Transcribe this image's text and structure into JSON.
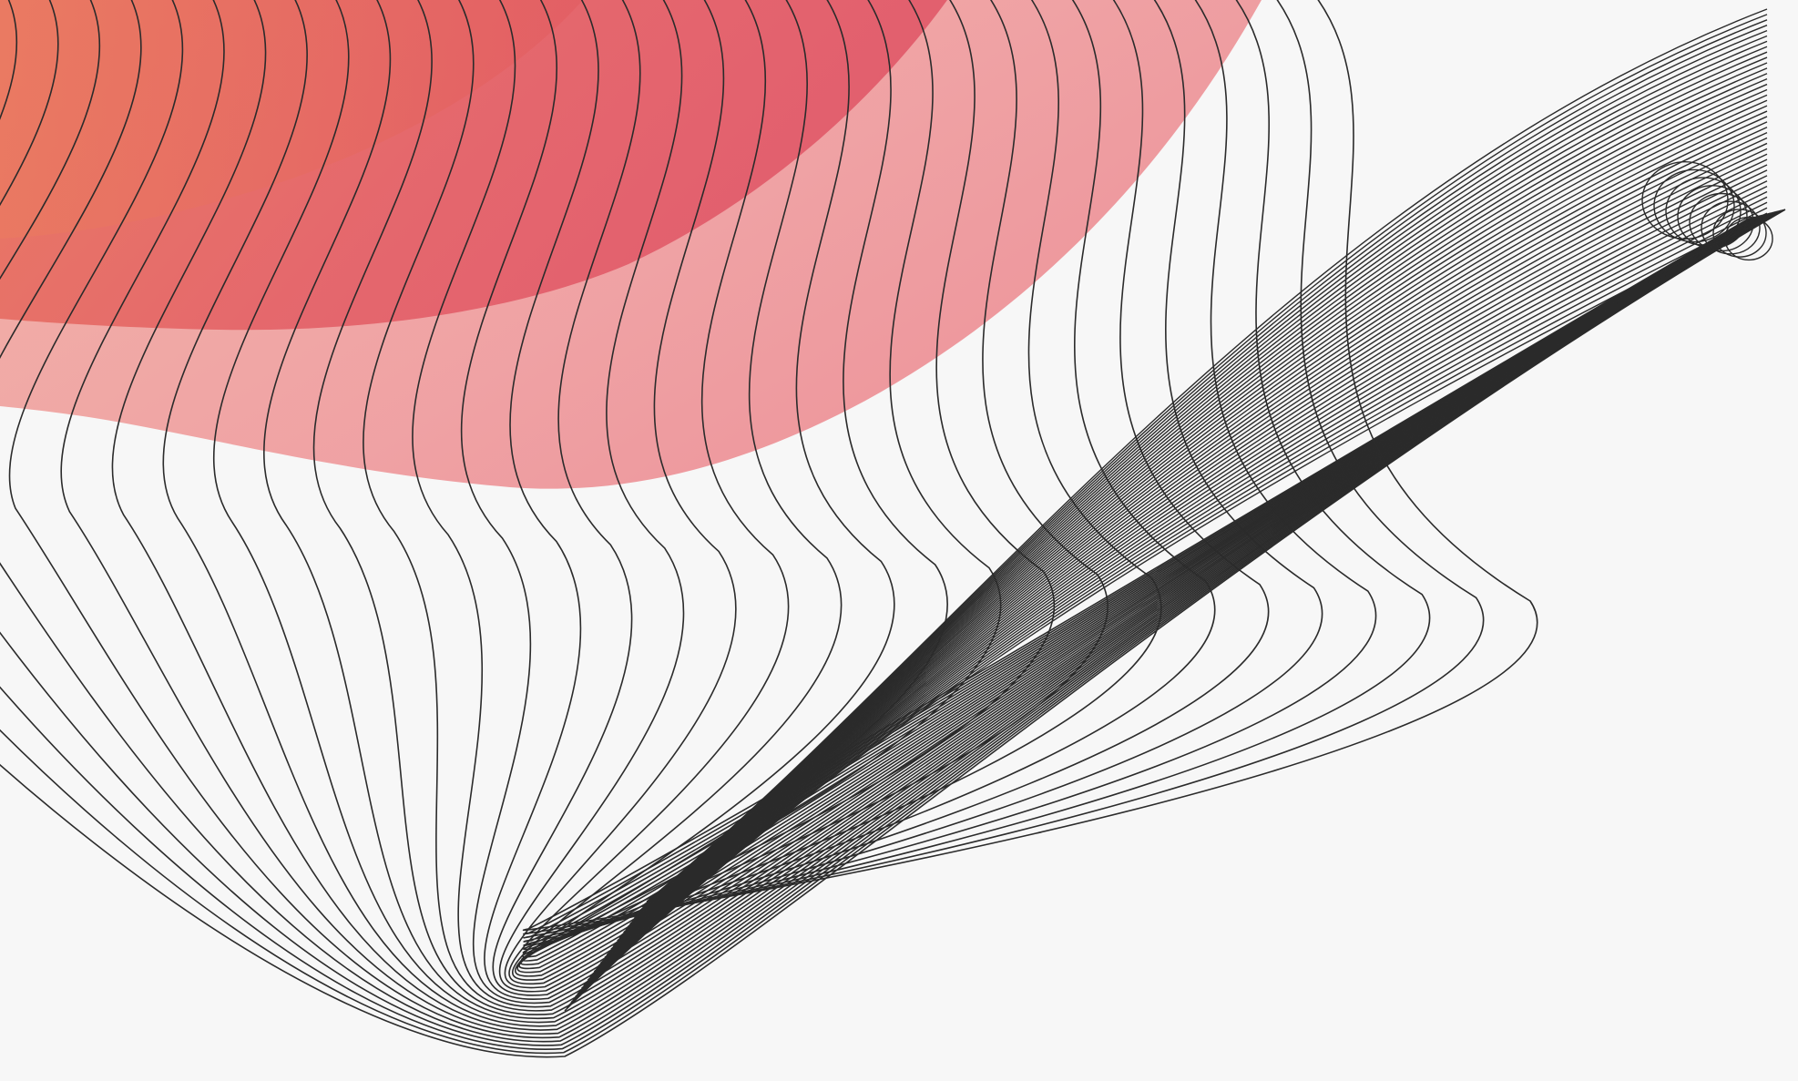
{
  "artwork": {
    "description_free": true,
    "background_color": "#f7f7f7",
    "line_color": "#2b2b2b",
    "blob_colors": {
      "outer_light": "#f0a7a1",
      "outer_pink": "#ec8f96",
      "inner_coral": "#e8735f",
      "inner_red": "#e35d6a"
    },
    "line_groups": [
      {
        "name": "flowing-wave-lines",
        "count": 34
      },
      {
        "name": "dense-diagonal-band",
        "count": 40
      }
    ]
  }
}
